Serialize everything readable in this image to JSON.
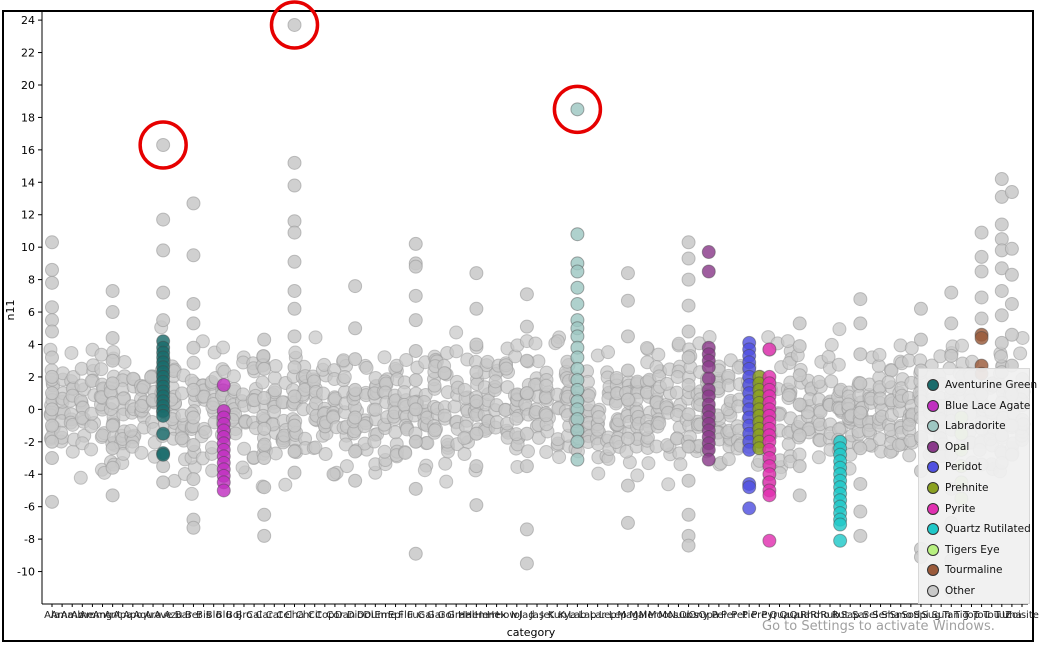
{
  "chart_data": {
    "type": "scatter",
    "title": "",
    "xlabel": "category",
    "ylabel": "n11",
    "ylim": [
      -12,
      24.5
    ],
    "yticks": [
      -10,
      -8,
      -6,
      -4,
      -2,
      0,
      2,
      4,
      6,
      8,
      10,
      12,
      14,
      16,
      18,
      20,
      22,
      24
    ],
    "grid": false,
    "legend_position": "bottom-right",
    "x_tick_labels": [
      "Ala",
      "Ama",
      "Amb",
      "Ame",
      "Amm",
      "Ang",
      "Ant",
      "Apa",
      "Apo",
      "Aqu",
      "Ara",
      "Ave",
      "Azu",
      "Bar",
      "Ber",
      "Bis",
      "Blo",
      "Blu",
      "Boj",
      "Bro",
      "Cal",
      "Car",
      "Cat",
      "Cel",
      "Cha",
      "Chr",
      "Cit",
      "Cop",
      "Cor",
      "Dan",
      "Dio",
      "Dol",
      "Dum",
      "Eme",
      "Epi",
      "Flu",
      "Fuc",
      "Gal",
      "Gar",
      "Gol",
      "Gra",
      "Hal",
      "Hem",
      "Hem",
      "Hex",
      "How",
      "Iol",
      "Jad",
      "Jas",
      "Jet",
      "Kun",
      "Kya",
      "Lab",
      "Lap",
      "Lar",
      "Lep",
      "Lep",
      "Mag",
      "Mal",
      "Mer",
      "Moo",
      "Mos",
      "Nuu",
      "Obs",
      "Ony",
      "Opa",
      "Pei",
      "Per",
      "Pet",
      "Pie",
      "Pre",
      "Pyr",
      "Qua",
      "Qua",
      "Qua",
      "Rho",
      "Rho",
      "Rub",
      "Rut",
      "Sap",
      "Sar",
      "Sel",
      "Ser",
      "Sha",
      "Smo",
      "Sod",
      "Spi",
      "Sug",
      "Sun",
      "Tan",
      "Tig",
      "Top",
      "Tou",
      "Tou",
      "Tur",
      "Una",
      "Zoisite"
    ],
    "series": [
      {
        "name": "Aventurine Green",
        "color": "#1a6b6b",
        "cat": 11,
        "values": [
          4.2,
          3.8,
          3.5,
          3.2,
          2.9,
          2.6,
          2.3,
          2.0,
          1.7,
          1.4,
          1.1,
          0.8,
          0.5,
          0.2,
          -0.1,
          -0.4,
          -1.5,
          -2.7,
          -2.8
        ]
      },
      {
        "name": "Blue Lace Agate",
        "color": "#c030c0",
        "cat": 17,
        "values": [
          1.5,
          -0.1,
          -0.5,
          -0.9,
          -1.3,
          -1.7,
          -2.1,
          -2.5,
          -2.9,
          -3.3,
          -3.7,
          -4.1,
          -4.5,
          -5.0
        ]
      },
      {
        "name": "Labradorite",
        "color": "#9ec7c2",
        "cat": 52,
        "values": [
          18.5,
          10.8,
          9.0,
          8.5,
          7.5,
          6.5,
          5.5,
          5.0,
          4.5,
          3.8,
          3.2,
          2.5,
          1.8,
          1.2,
          0.5,
          0.0,
          -0.6,
          -1.3,
          -2.0,
          -3.1
        ]
      },
      {
        "name": "Opal",
        "color": "#8a3a8a",
        "cat": 65,
        "values": [
          9.7,
          8.5,
          3.8,
          3.4,
          3.0,
          2.6,
          1.9,
          1.2,
          0.8,
          0.3,
          -0.1,
          -0.5,
          -0.9,
          -1.3,
          -1.7,
          -2.1,
          -2.5,
          -3.1
        ]
      },
      {
        "name": "Peridot",
        "color": "#5050e0",
        "cat": 69,
        "values": [
          4.1,
          3.7,
          3.3,
          2.9,
          2.5,
          2.0,
          1.5,
          1.0,
          0.5,
          0.0,
          -0.5,
          -1.0,
          -1.5,
          -2.0,
          -2.5,
          -4.6,
          -4.8,
          -6.1
        ]
      },
      {
        "name": "Prehnite",
        "color": "#8aa020",
        "cat": 70,
        "values": [
          2.0,
          1.6,
          1.2,
          0.8,
          0.4,
          0.0,
          -0.4,
          -0.8,
          -1.2,
          -1.6,
          -2.0,
          -2.4
        ]
      },
      {
        "name": "Pyrite",
        "color": "#e030b0",
        "cat": 71,
        "values": [
          3.7,
          2.0,
          1.6,
          1.2,
          0.8,
          0.4,
          0.0,
          -0.4,
          -0.8,
          -1.2,
          -1.6,
          -2.0,
          -2.5,
          -3.0,
          -3.5,
          -4.0,
          -4.5,
          -5.0,
          -5.3,
          -8.1
        ]
      },
      {
        "name": "Quartz Rutilated",
        "color": "#20c8c8",
        "cat": 78,
        "values": [
          -2.0,
          -2.4,
          -2.8,
          -3.2,
          -3.6,
          -4.0,
          -4.4,
          -4.8,
          -5.2,
          -5.6,
          -6.0,
          -6.4,
          -6.8,
          -7.1,
          -8.1
        ]
      },
      {
        "name": "Tigers Eye",
        "color": "#b8f080",
        "cat": 90,
        "values": [
          -0.5,
          -1.5,
          -2.5,
          -3.5,
          -4.5,
          -5.5
        ]
      },
      {
        "name": "Tourmaline",
        "color": "#9a5a3a",
        "cat": 92,
        "values": [
          4.6,
          4.4,
          2.7,
          2.2
        ]
      },
      {
        "name": "Other",
        "color": "#c8c8c8",
        "cat": null,
        "values": []
      }
    ],
    "other_sample_columns": [
      {
        "cat": 0,
        "values": [
          10.3,
          8.6,
          7.8,
          6.3,
          5.5,
          4.8,
          3.2,
          2.0,
          1.0,
          0.0,
          -1.0,
          -2.0,
          -3.0,
          -5.7
        ]
      },
      {
        "cat": 6,
        "values": [
          7.3,
          6.0,
          4.4,
          3.0,
          1.6,
          0.4,
          -1.0,
          -2.4,
          -3.6,
          -5.3
        ]
      },
      {
        "cat": 11,
        "values": [
          16.3,
          11.7,
          9.8,
          7.2,
          5.5,
          -3.5,
          -4.5
        ]
      },
      {
        "cat": 14,
        "values": [
          12.7,
          9.5,
          6.5,
          5.3,
          3.8,
          1.2,
          -0.5,
          -2.2,
          -4.3,
          -6.8,
          -7.3
        ]
      },
      {
        "cat": 21,
        "values": [
          4.3,
          2.5,
          0.7,
          -1.2,
          -3.0,
          -4.8,
          -6.5,
          -7.8
        ]
      },
      {
        "cat": 24,
        "values": [
          23.7,
          15.2,
          13.8,
          11.6,
          10.9,
          9.1,
          7.3,
          6.2,
          4.5,
          2.6,
          0.8,
          -1.0,
          -2.6,
          -3.9
        ]
      },
      {
        "cat": 30,
        "values": [
          7.6,
          5.0,
          3.1,
          1.2,
          -0.5,
          -2.6,
          -4.4
        ]
      },
      {
        "cat": 36,
        "values": [
          10.2,
          9.0,
          8.8,
          7.0,
          5.5,
          3.6,
          1.8,
          0.0,
          -2.0,
          -4.9,
          -8.9
        ]
      },
      {
        "cat": 42,
        "values": [
          8.4,
          6.2,
          4.0,
          2.3,
          0.5,
          -1.5,
          -3.5,
          -5.9
        ]
      },
      {
        "cat": 47,
        "values": [
          7.1,
          5.1,
          3.0,
          1.0,
          -1.5,
          -3.5,
          -7.4,
          -9.5
        ]
      },
      {
        "cat": 57,
        "values": [
          8.4,
          6.7,
          4.5,
          2.4,
          0.6,
          -1.8,
          -4.7,
          -7.0
        ]
      },
      {
        "cat": 63,
        "values": [
          10.3,
          9.3,
          8.0,
          6.4,
          4.8,
          3.2,
          1.5,
          -0.3,
          -2.3,
          -4.4,
          -6.5,
          -7.8,
          -8.4
        ]
      },
      {
        "cat": 74,
        "values": [
          5.3,
          3.9,
          2.1,
          0.3,
          -1.6,
          -3.5,
          -5.3
        ]
      },
      {
        "cat": 80,
        "values": [
          6.8,
          5.3,
          3.4,
          1.6,
          -0.2,
          -2.4,
          -4.6,
          -6.3,
          -7.8
        ]
      },
      {
        "cat": 86,
        "values": [
          6.2,
          4.3,
          2.4,
          0.5,
          -1.7,
          -3.8,
          -8.6,
          -9.1
        ]
      },
      {
        "cat": 89,
        "values": [
          7.2,
          5.3,
          3.3,
          1.3,
          -0.7,
          -2.8,
          -4.9,
          -7.0,
          -9.3,
          -11.2
        ]
      },
      {
        "cat": 92,
        "values": [
          10.9,
          9.4,
          8.5,
          6.9,
          5.6,
          0.9,
          -1.2,
          -3.4
        ]
      },
      {
        "cat": 94,
        "values": [
          14.2,
          13.1,
          11.4,
          10.5,
          9.8,
          8.7,
          7.3,
          5.8,
          4.1,
          2.3,
          0.4,
          -1.6,
          -3.3
        ]
      },
      {
        "cat": 95,
        "values": [
          13.4,
          9.9,
          8.3,
          6.5,
          4.6,
          2.7,
          0.9,
          -1.0,
          -2.8
        ]
      }
    ],
    "highlight_circles": [
      {
        "cat": 11,
        "y": 16.3
      },
      {
        "cat": 24,
        "y": 23.7
      },
      {
        "cat": 52,
        "y": 18.5
      }
    ]
  },
  "watermark": "Go to Settings to activate Windows."
}
